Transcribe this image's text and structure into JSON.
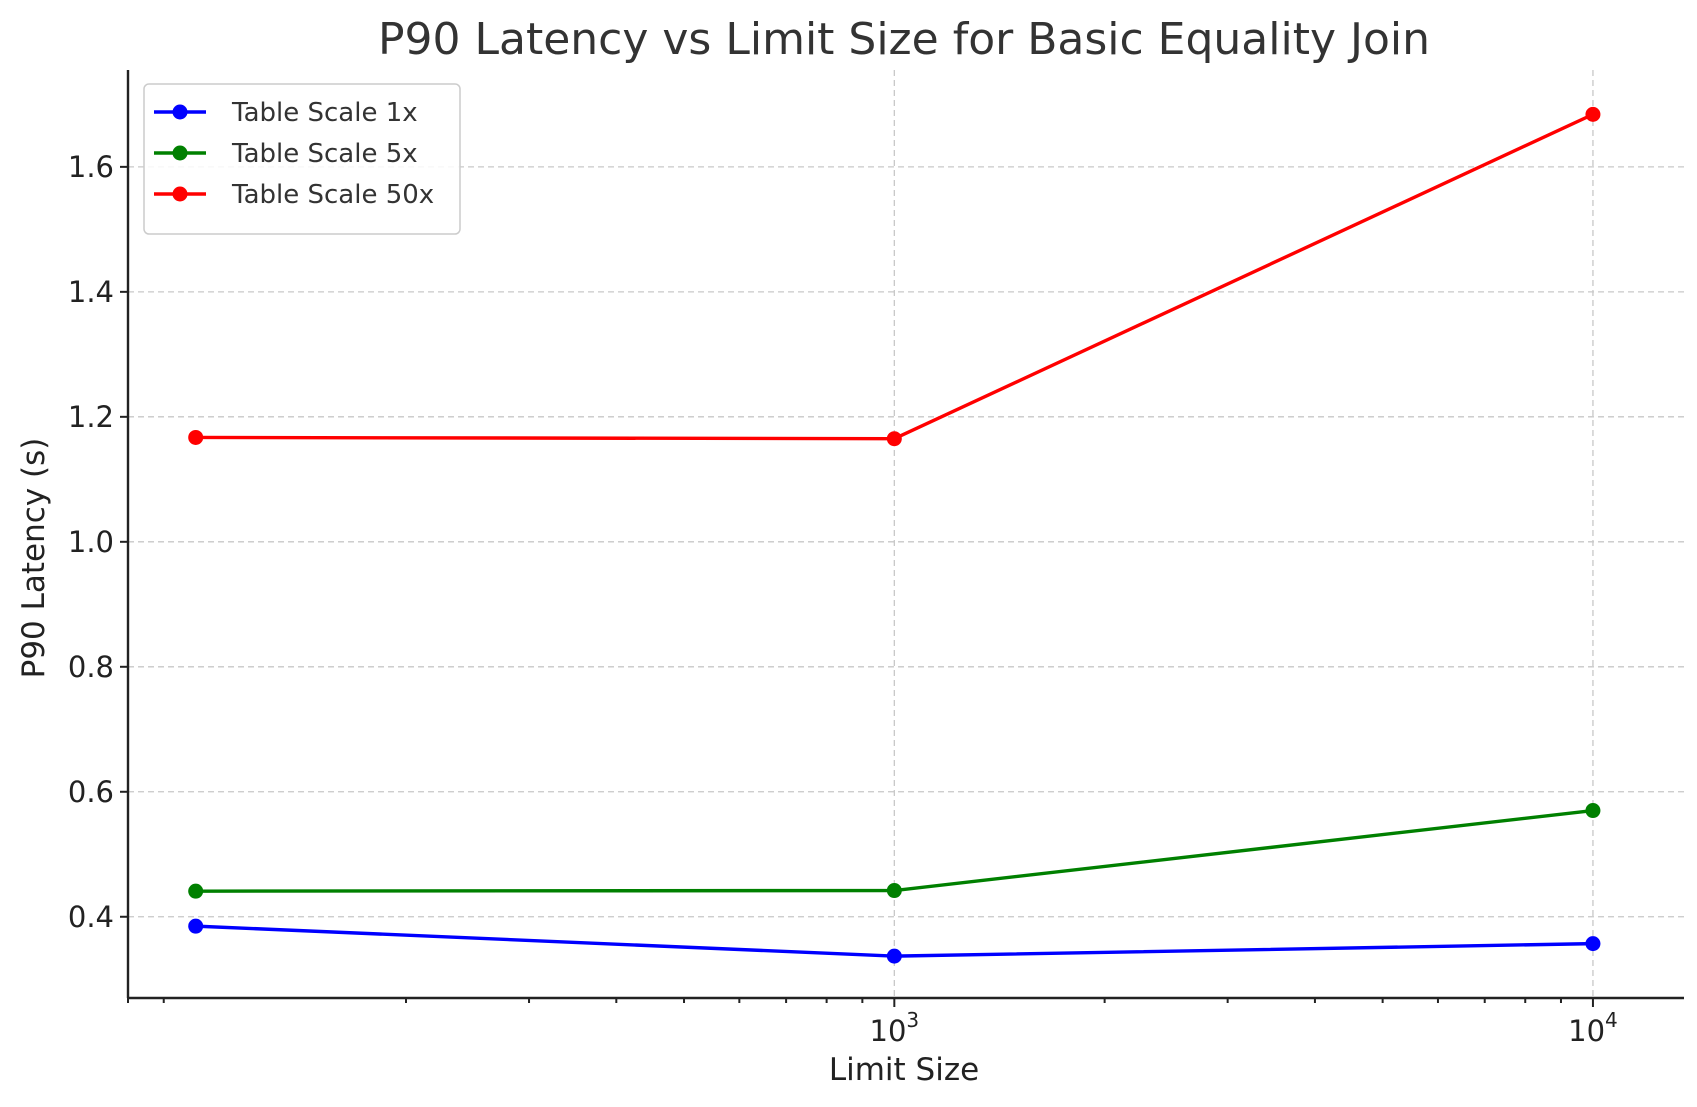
{
  "chart_data": {
    "type": "line",
    "title": "P90 Latency vs Limit Size for Basic Equality Join",
    "xlabel": "Limit Size",
    "ylabel": "P90 Latency (s)",
    "x_scale": "log",
    "x": [
      100,
      1000,
      10000
    ],
    "xlim": [
      80,
      13500
    ],
    "ylim": [
      0.27,
      1.755
    ],
    "x_ticks": [
      {
        "base": "10",
        "exp": "3",
        "value": 1000
      },
      {
        "base": "10",
        "exp": "4",
        "value": 10000
      }
    ],
    "y_ticks": [
      {
        "label": "0.4",
        "value": 0.4
      },
      {
        "label": "0.6",
        "value": 0.6
      },
      {
        "label": "0.8",
        "value": 0.8
      },
      {
        "label": "1.0",
        "value": 1.0
      },
      {
        "label": "1.2",
        "value": 1.2
      },
      {
        "label": "1.4",
        "value": 1.4
      },
      {
        "label": "1.6",
        "value": 1.6
      }
    ],
    "grid": true,
    "legend_position": "top-left",
    "series": [
      {
        "name": "Table Scale 1x",
        "color": "#0000ff",
        "values": [
          0.385,
          0.337,
          0.357
        ]
      },
      {
        "name": "Table Scale 5x",
        "color": "#008000",
        "values": [
          0.441,
          0.442,
          0.57
        ]
      },
      {
        "name": "Table Scale 50x",
        "color": "#ff0000",
        "values": [
          1.167,
          1.165,
          1.684
        ]
      }
    ]
  }
}
